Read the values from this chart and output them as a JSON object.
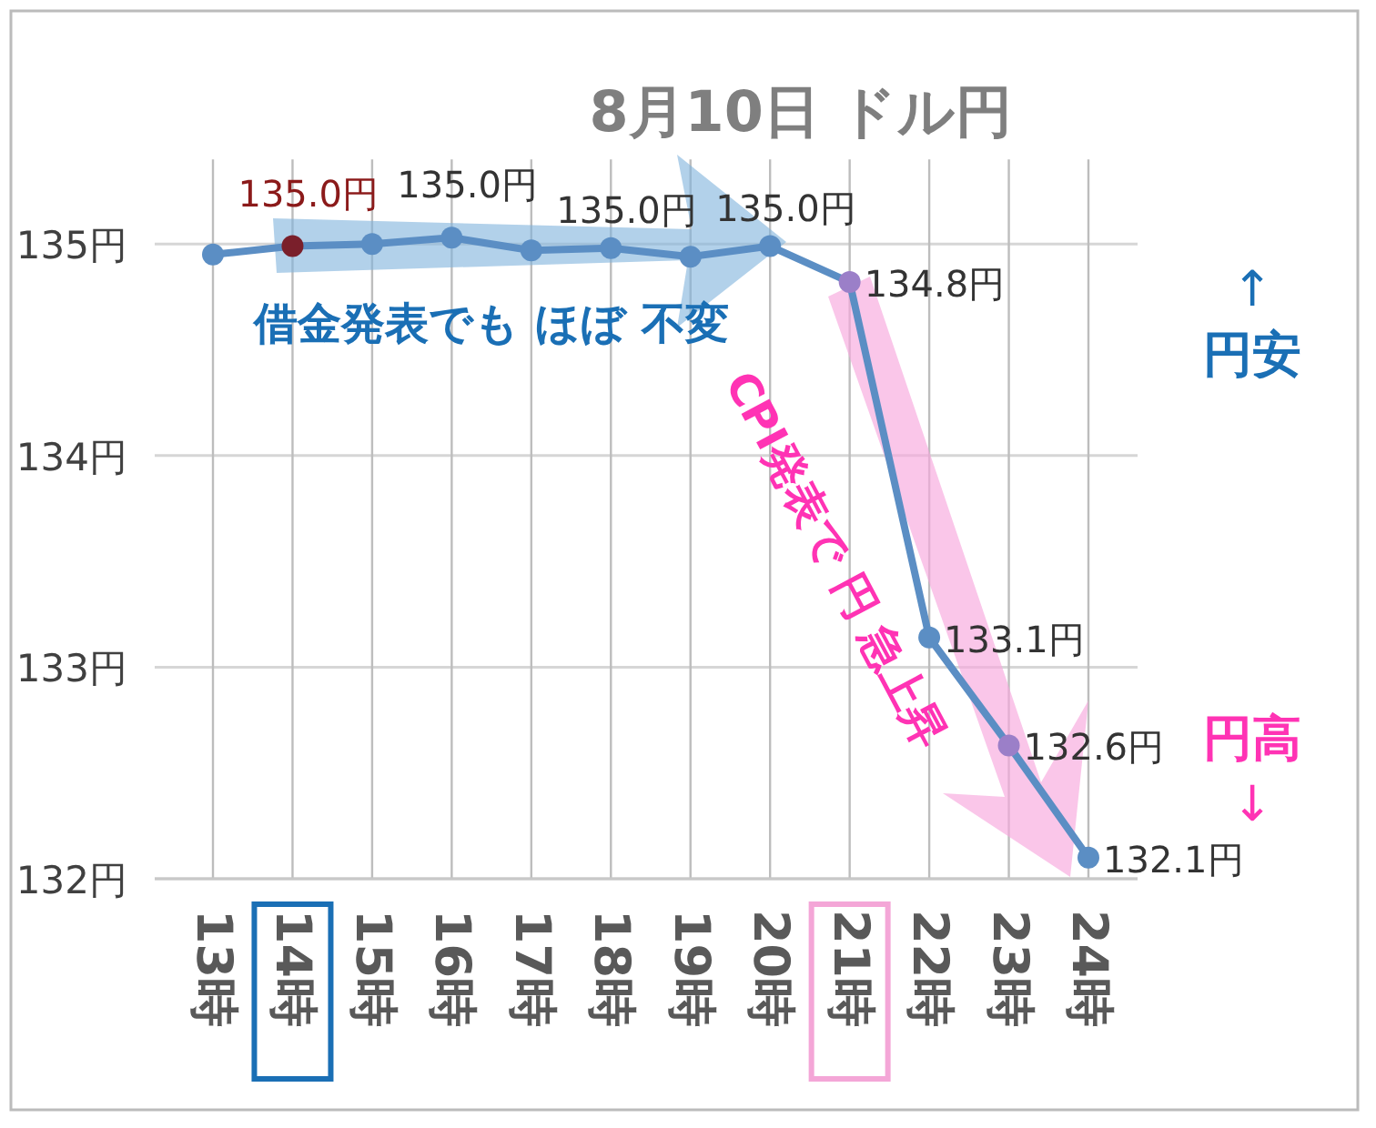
{
  "chart_data": {
    "type": "line",
    "title": "8月10日  ドル円",
    "categories": [
      "13時",
      "14時",
      "15時",
      "16時",
      "17時",
      "18時",
      "19時",
      "20時",
      "21時",
      "22時",
      "23時",
      "24時"
    ],
    "series": [
      {
        "color": "#5b8ec4",
        "values": [
          134.95,
          134.99,
          135.0,
          135.03,
          134.97,
          134.98,
          134.94,
          134.99,
          134.82,
          133.14,
          132.63,
          132.1
        ],
        "colors": [
          "#5b8ec4",
          "#7a1f2b",
          "#5b8ec4",
          "#5b8ec4",
          "#5b8ec4",
          "#5b8ec4",
          "#5b8ec4",
          "#5b8ec4",
          "#9b7fc8",
          "#5b8ec4",
          "#9b7fc8",
          "#5b8ec4"
        ],
        "value_labels": [
          null,
          "135.0円",
          null,
          "135.0円",
          null,
          "135.0円",
          null,
          "135.0円",
          "134.8円",
          "133.1円",
          "132.6円",
          "132.1円"
        ]
      }
    ],
    "ylim": [
      132,
      135.4
    ],
    "yticks": [
      {
        "value": 132,
        "label": "132円"
      },
      {
        "value": 133,
        "label": "133円"
      },
      {
        "value": 134,
        "label": "134円"
      },
      {
        "value": 135,
        "label": "135円"
      }
    ],
    "grid": true,
    "marker": "circle",
    "line_style": "solid",
    "annotations": [
      "借金発表でも ほぼ 不変",
      "CPI発表で 円 急上昇",
      "↑ 円安",
      "円高 ↓"
    ]
  }
}
